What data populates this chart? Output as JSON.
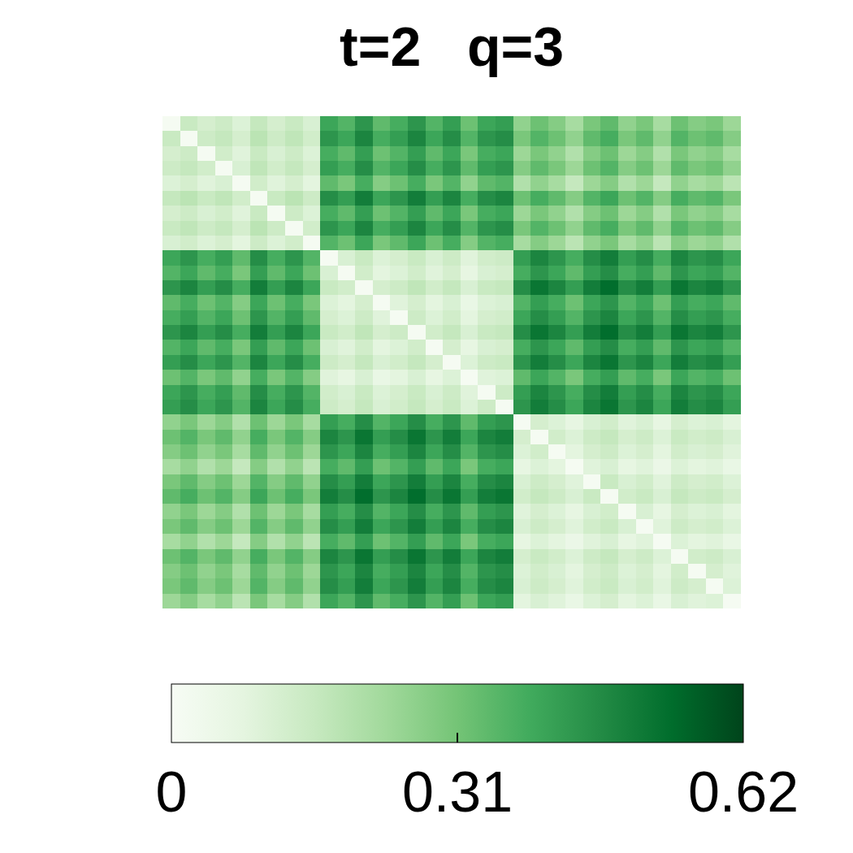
{
  "chart_data": {
    "type": "heatmap",
    "title": "t=2   q=3",
    "categories": [
      null,
      null,
      null,
      null,
      null,
      null,
      null,
      null,
      null,
      null,
      null,
      null,
      null,
      null,
      null,
      null,
      null,
      null,
      null,
      null,
      null,
      null,
      null,
      null,
      null,
      null,
      null,
      null,
      null,
      null,
      null,
      null,
      null
    ],
    "y_categories": [
      null,
      null,
      null,
      null,
      null,
      null,
      null,
      null,
      null,
      null,
      null,
      null,
      null,
      null,
      null,
      null,
      null,
      null,
      null,
      null,
      null,
      null,
      null,
      null,
      null,
      null,
      null,
      null,
      null,
      null,
      null,
      null,
      null
    ],
    "cells": [
      [
        0.01,
        0.15,
        0.12,
        0.14,
        0.1,
        0.16,
        0.12,
        0.15,
        0.11,
        0.4,
        0.36,
        0.44,
        0.34,
        0.38,
        0.44,
        0.36,
        0.42,
        0.32,
        0.4,
        0.42,
        0.26,
        0.32,
        0.28,
        0.22,
        0.3,
        0.34,
        0.26,
        0.3,
        0.22,
        0.32,
        0.28,
        0.3,
        0.24
      ],
      [
        0.15,
        0.01,
        0.14,
        0.16,
        0.12,
        0.18,
        0.14,
        0.17,
        0.13,
        0.44,
        0.4,
        0.48,
        0.38,
        0.42,
        0.48,
        0.4,
        0.46,
        0.36,
        0.44,
        0.46,
        0.3,
        0.36,
        0.32,
        0.26,
        0.34,
        0.38,
        0.3,
        0.34,
        0.26,
        0.36,
        0.32,
        0.34,
        0.28
      ],
      [
        0.12,
        0.14,
        0.01,
        0.13,
        0.09,
        0.15,
        0.11,
        0.14,
        0.1,
        0.38,
        0.34,
        0.42,
        0.32,
        0.36,
        0.42,
        0.34,
        0.4,
        0.3,
        0.38,
        0.4,
        0.24,
        0.3,
        0.26,
        0.2,
        0.28,
        0.32,
        0.24,
        0.28,
        0.2,
        0.3,
        0.26,
        0.28,
        0.22
      ],
      [
        0.14,
        0.16,
        0.13,
        0.01,
        0.11,
        0.17,
        0.13,
        0.16,
        0.12,
        0.42,
        0.38,
        0.46,
        0.36,
        0.4,
        0.46,
        0.38,
        0.44,
        0.34,
        0.42,
        0.44,
        0.28,
        0.34,
        0.3,
        0.24,
        0.32,
        0.36,
        0.28,
        0.32,
        0.24,
        0.34,
        0.3,
        0.32,
        0.26
      ],
      [
        0.1,
        0.12,
        0.09,
        0.11,
        0.01,
        0.13,
        0.09,
        0.12,
        0.08,
        0.34,
        0.3,
        0.38,
        0.28,
        0.32,
        0.38,
        0.3,
        0.36,
        0.26,
        0.34,
        0.36,
        0.2,
        0.26,
        0.22,
        0.16,
        0.24,
        0.28,
        0.2,
        0.24,
        0.16,
        0.26,
        0.22,
        0.24,
        0.18
      ],
      [
        0.16,
        0.18,
        0.15,
        0.17,
        0.13,
        0.01,
        0.15,
        0.18,
        0.14,
        0.46,
        0.42,
        0.5,
        0.4,
        0.44,
        0.5,
        0.42,
        0.48,
        0.38,
        0.46,
        0.48,
        0.32,
        0.38,
        0.34,
        0.28,
        0.36,
        0.4,
        0.32,
        0.36,
        0.28,
        0.38,
        0.34,
        0.36,
        0.3
      ],
      [
        0.12,
        0.14,
        0.11,
        0.13,
        0.09,
        0.15,
        0.01,
        0.14,
        0.1,
        0.38,
        0.34,
        0.42,
        0.32,
        0.36,
        0.42,
        0.34,
        0.4,
        0.3,
        0.38,
        0.4,
        0.24,
        0.3,
        0.26,
        0.2,
        0.28,
        0.32,
        0.24,
        0.28,
        0.2,
        0.3,
        0.26,
        0.28,
        0.22
      ],
      [
        0.15,
        0.17,
        0.14,
        0.16,
        0.12,
        0.18,
        0.14,
        0.01,
        0.13,
        0.44,
        0.4,
        0.48,
        0.38,
        0.42,
        0.48,
        0.4,
        0.46,
        0.36,
        0.44,
        0.46,
        0.3,
        0.36,
        0.32,
        0.26,
        0.34,
        0.38,
        0.3,
        0.34,
        0.26,
        0.36,
        0.32,
        0.34,
        0.28
      ],
      [
        0.11,
        0.13,
        0.1,
        0.12,
        0.08,
        0.14,
        0.1,
        0.13,
        0.01,
        0.36,
        0.32,
        0.4,
        0.3,
        0.34,
        0.4,
        0.32,
        0.38,
        0.28,
        0.36,
        0.38,
        0.22,
        0.28,
        0.24,
        0.18,
        0.26,
        0.3,
        0.22,
        0.26,
        0.18,
        0.28,
        0.24,
        0.26,
        0.2
      ],
      [
        0.4,
        0.44,
        0.38,
        0.42,
        0.34,
        0.46,
        0.38,
        0.44,
        0.36,
        0.01,
        0.11,
        0.15,
        0.1,
        0.12,
        0.15,
        0.11,
        0.14,
        0.09,
        0.13,
        0.14,
        0.42,
        0.48,
        0.44,
        0.38,
        0.46,
        0.5,
        0.42,
        0.46,
        0.38,
        0.48,
        0.44,
        0.46,
        0.4
      ],
      [
        0.36,
        0.4,
        0.34,
        0.38,
        0.3,
        0.42,
        0.34,
        0.4,
        0.32,
        0.11,
        0.01,
        0.13,
        0.08,
        0.1,
        0.13,
        0.09,
        0.12,
        0.07,
        0.11,
        0.12,
        0.38,
        0.44,
        0.4,
        0.34,
        0.42,
        0.46,
        0.38,
        0.42,
        0.34,
        0.44,
        0.4,
        0.42,
        0.36
      ],
      [
        0.44,
        0.48,
        0.42,
        0.46,
        0.38,
        0.5,
        0.42,
        0.48,
        0.4,
        0.15,
        0.13,
        0.01,
        0.12,
        0.14,
        0.17,
        0.13,
        0.16,
        0.11,
        0.15,
        0.16,
        0.46,
        0.52,
        0.48,
        0.42,
        0.5,
        0.54,
        0.46,
        0.5,
        0.42,
        0.52,
        0.48,
        0.5,
        0.44
      ],
      [
        0.34,
        0.38,
        0.32,
        0.36,
        0.28,
        0.4,
        0.32,
        0.38,
        0.3,
        0.1,
        0.08,
        0.12,
        0.01,
        0.09,
        0.12,
        0.08,
        0.11,
        0.06,
        0.1,
        0.11,
        0.36,
        0.42,
        0.38,
        0.32,
        0.4,
        0.44,
        0.36,
        0.4,
        0.32,
        0.42,
        0.38,
        0.4,
        0.34
      ],
      [
        0.38,
        0.42,
        0.36,
        0.4,
        0.32,
        0.44,
        0.36,
        0.42,
        0.34,
        0.12,
        0.1,
        0.14,
        0.09,
        0.01,
        0.14,
        0.1,
        0.13,
        0.08,
        0.12,
        0.13,
        0.4,
        0.46,
        0.42,
        0.36,
        0.44,
        0.48,
        0.4,
        0.44,
        0.36,
        0.46,
        0.42,
        0.44,
        0.38
      ],
      [
        0.44,
        0.48,
        0.42,
        0.46,
        0.38,
        0.5,
        0.42,
        0.48,
        0.4,
        0.15,
        0.13,
        0.17,
        0.12,
        0.14,
        0.01,
        0.13,
        0.16,
        0.11,
        0.15,
        0.16,
        0.46,
        0.52,
        0.48,
        0.42,
        0.5,
        0.54,
        0.46,
        0.5,
        0.42,
        0.52,
        0.48,
        0.5,
        0.44
      ],
      [
        0.36,
        0.4,
        0.34,
        0.38,
        0.3,
        0.42,
        0.34,
        0.4,
        0.32,
        0.11,
        0.09,
        0.13,
        0.08,
        0.1,
        0.13,
        0.01,
        0.12,
        0.07,
        0.11,
        0.12,
        0.38,
        0.44,
        0.4,
        0.34,
        0.42,
        0.46,
        0.38,
        0.42,
        0.34,
        0.44,
        0.4,
        0.42,
        0.36
      ],
      [
        0.42,
        0.46,
        0.4,
        0.44,
        0.36,
        0.48,
        0.4,
        0.46,
        0.38,
        0.14,
        0.12,
        0.16,
        0.11,
        0.13,
        0.16,
        0.12,
        0.01,
        0.1,
        0.14,
        0.15,
        0.44,
        0.5,
        0.46,
        0.4,
        0.48,
        0.52,
        0.44,
        0.48,
        0.4,
        0.5,
        0.46,
        0.48,
        0.42
      ],
      [
        0.32,
        0.36,
        0.3,
        0.34,
        0.26,
        0.38,
        0.3,
        0.36,
        0.28,
        0.09,
        0.07,
        0.11,
        0.06,
        0.08,
        0.11,
        0.07,
        0.1,
        0.01,
        0.09,
        0.1,
        0.34,
        0.4,
        0.36,
        0.3,
        0.38,
        0.42,
        0.34,
        0.38,
        0.3,
        0.4,
        0.36,
        0.38,
        0.32
      ],
      [
        0.4,
        0.44,
        0.38,
        0.42,
        0.34,
        0.46,
        0.38,
        0.44,
        0.36,
        0.13,
        0.11,
        0.15,
        0.1,
        0.12,
        0.15,
        0.11,
        0.14,
        0.09,
        0.01,
        0.14,
        0.42,
        0.48,
        0.44,
        0.38,
        0.46,
        0.5,
        0.42,
        0.46,
        0.38,
        0.48,
        0.44,
        0.46,
        0.4
      ],
      [
        0.42,
        0.46,
        0.4,
        0.44,
        0.36,
        0.48,
        0.4,
        0.46,
        0.38,
        0.14,
        0.12,
        0.16,
        0.11,
        0.13,
        0.16,
        0.12,
        0.15,
        0.1,
        0.14,
        0.01,
        0.44,
        0.5,
        0.46,
        0.4,
        0.48,
        0.52,
        0.44,
        0.48,
        0.4,
        0.5,
        0.46,
        0.48,
        0.42
      ],
      [
        0.26,
        0.3,
        0.24,
        0.28,
        0.2,
        0.32,
        0.24,
        0.3,
        0.22,
        0.42,
        0.38,
        0.46,
        0.36,
        0.4,
        0.46,
        0.38,
        0.44,
        0.34,
        0.42,
        0.44,
        0.01,
        0.12,
        0.1,
        0.07,
        0.11,
        0.13,
        0.09,
        0.11,
        0.07,
        0.12,
        0.1,
        0.11,
        0.08
      ],
      [
        0.32,
        0.36,
        0.3,
        0.34,
        0.26,
        0.38,
        0.3,
        0.36,
        0.28,
        0.48,
        0.44,
        0.52,
        0.42,
        0.46,
        0.52,
        0.44,
        0.5,
        0.4,
        0.48,
        0.5,
        0.12,
        0.01,
        0.13,
        0.1,
        0.14,
        0.16,
        0.12,
        0.14,
        0.1,
        0.15,
        0.13,
        0.14,
        0.11
      ],
      [
        0.28,
        0.32,
        0.26,
        0.3,
        0.22,
        0.34,
        0.26,
        0.32,
        0.24,
        0.44,
        0.4,
        0.48,
        0.38,
        0.42,
        0.48,
        0.4,
        0.46,
        0.36,
        0.44,
        0.46,
        0.1,
        0.13,
        0.01,
        0.08,
        0.12,
        0.14,
        0.1,
        0.12,
        0.08,
        0.13,
        0.11,
        0.12,
        0.09
      ],
      [
        0.22,
        0.26,
        0.2,
        0.24,
        0.16,
        0.28,
        0.2,
        0.26,
        0.18,
        0.38,
        0.34,
        0.42,
        0.32,
        0.36,
        0.42,
        0.34,
        0.4,
        0.3,
        0.38,
        0.4,
        0.07,
        0.1,
        0.08,
        0.01,
        0.09,
        0.11,
        0.07,
        0.09,
        0.05,
        0.1,
        0.08,
        0.09,
        0.06
      ],
      [
        0.3,
        0.34,
        0.28,
        0.32,
        0.24,
        0.36,
        0.28,
        0.34,
        0.26,
        0.46,
        0.42,
        0.5,
        0.4,
        0.44,
        0.5,
        0.42,
        0.48,
        0.38,
        0.46,
        0.48,
        0.11,
        0.14,
        0.12,
        0.09,
        0.01,
        0.15,
        0.11,
        0.13,
        0.09,
        0.14,
        0.12,
        0.13,
        0.1
      ],
      [
        0.34,
        0.38,
        0.32,
        0.36,
        0.28,
        0.4,
        0.32,
        0.38,
        0.3,
        0.5,
        0.46,
        0.54,
        0.44,
        0.48,
        0.54,
        0.46,
        0.52,
        0.42,
        0.5,
        0.52,
        0.13,
        0.16,
        0.14,
        0.11,
        0.15,
        0.01,
        0.13,
        0.15,
        0.11,
        0.16,
        0.14,
        0.15,
        0.12
      ],
      [
        0.26,
        0.3,
        0.24,
        0.28,
        0.2,
        0.32,
        0.24,
        0.3,
        0.22,
        0.42,
        0.38,
        0.46,
        0.36,
        0.4,
        0.46,
        0.38,
        0.44,
        0.34,
        0.42,
        0.44,
        0.09,
        0.12,
        0.1,
        0.07,
        0.11,
        0.13,
        0.01,
        0.11,
        0.07,
        0.12,
        0.1,
        0.11,
        0.08
      ],
      [
        0.3,
        0.34,
        0.28,
        0.32,
        0.24,
        0.36,
        0.28,
        0.34,
        0.26,
        0.46,
        0.42,
        0.5,
        0.4,
        0.44,
        0.5,
        0.42,
        0.48,
        0.38,
        0.46,
        0.48,
        0.11,
        0.14,
        0.12,
        0.09,
        0.13,
        0.15,
        0.11,
        0.01,
        0.09,
        0.14,
        0.12,
        0.13,
        0.1
      ],
      [
        0.22,
        0.26,
        0.2,
        0.24,
        0.16,
        0.28,
        0.2,
        0.26,
        0.18,
        0.38,
        0.34,
        0.42,
        0.32,
        0.36,
        0.42,
        0.34,
        0.4,
        0.3,
        0.38,
        0.4,
        0.07,
        0.1,
        0.08,
        0.05,
        0.09,
        0.11,
        0.07,
        0.09,
        0.01,
        0.1,
        0.08,
        0.09,
        0.06
      ],
      [
        0.32,
        0.36,
        0.3,
        0.34,
        0.26,
        0.38,
        0.3,
        0.36,
        0.28,
        0.48,
        0.44,
        0.52,
        0.42,
        0.46,
        0.52,
        0.44,
        0.5,
        0.4,
        0.48,
        0.5,
        0.12,
        0.15,
        0.13,
        0.1,
        0.14,
        0.16,
        0.12,
        0.14,
        0.1,
        0.01,
        0.13,
        0.14,
        0.11
      ],
      [
        0.28,
        0.32,
        0.26,
        0.3,
        0.22,
        0.34,
        0.26,
        0.32,
        0.24,
        0.44,
        0.4,
        0.48,
        0.38,
        0.42,
        0.48,
        0.4,
        0.46,
        0.36,
        0.44,
        0.46,
        0.1,
        0.13,
        0.11,
        0.08,
        0.12,
        0.14,
        0.1,
        0.12,
        0.08,
        0.13,
        0.01,
        0.12,
        0.09
      ],
      [
        0.3,
        0.34,
        0.28,
        0.32,
        0.24,
        0.36,
        0.28,
        0.34,
        0.26,
        0.46,
        0.42,
        0.5,
        0.4,
        0.44,
        0.5,
        0.42,
        0.48,
        0.38,
        0.46,
        0.48,
        0.11,
        0.14,
        0.12,
        0.09,
        0.13,
        0.15,
        0.11,
        0.13,
        0.09,
        0.14,
        0.12,
        0.01,
        0.1
      ],
      [
        0.24,
        0.28,
        0.22,
        0.26,
        0.18,
        0.3,
        0.22,
        0.28,
        0.2,
        0.4,
        0.36,
        0.44,
        0.34,
        0.38,
        0.44,
        0.36,
        0.42,
        0.32,
        0.4,
        0.42,
        0.08,
        0.11,
        0.09,
        0.06,
        0.1,
        0.12,
        0.08,
        0.1,
        0.06,
        0.11,
        0.09,
        0.1,
        0.01
      ]
    ],
    "clim": [
      0,
      0.62
    ],
    "cticks": [
      0,
      0.31,
      0.62
    ]
  }
}
